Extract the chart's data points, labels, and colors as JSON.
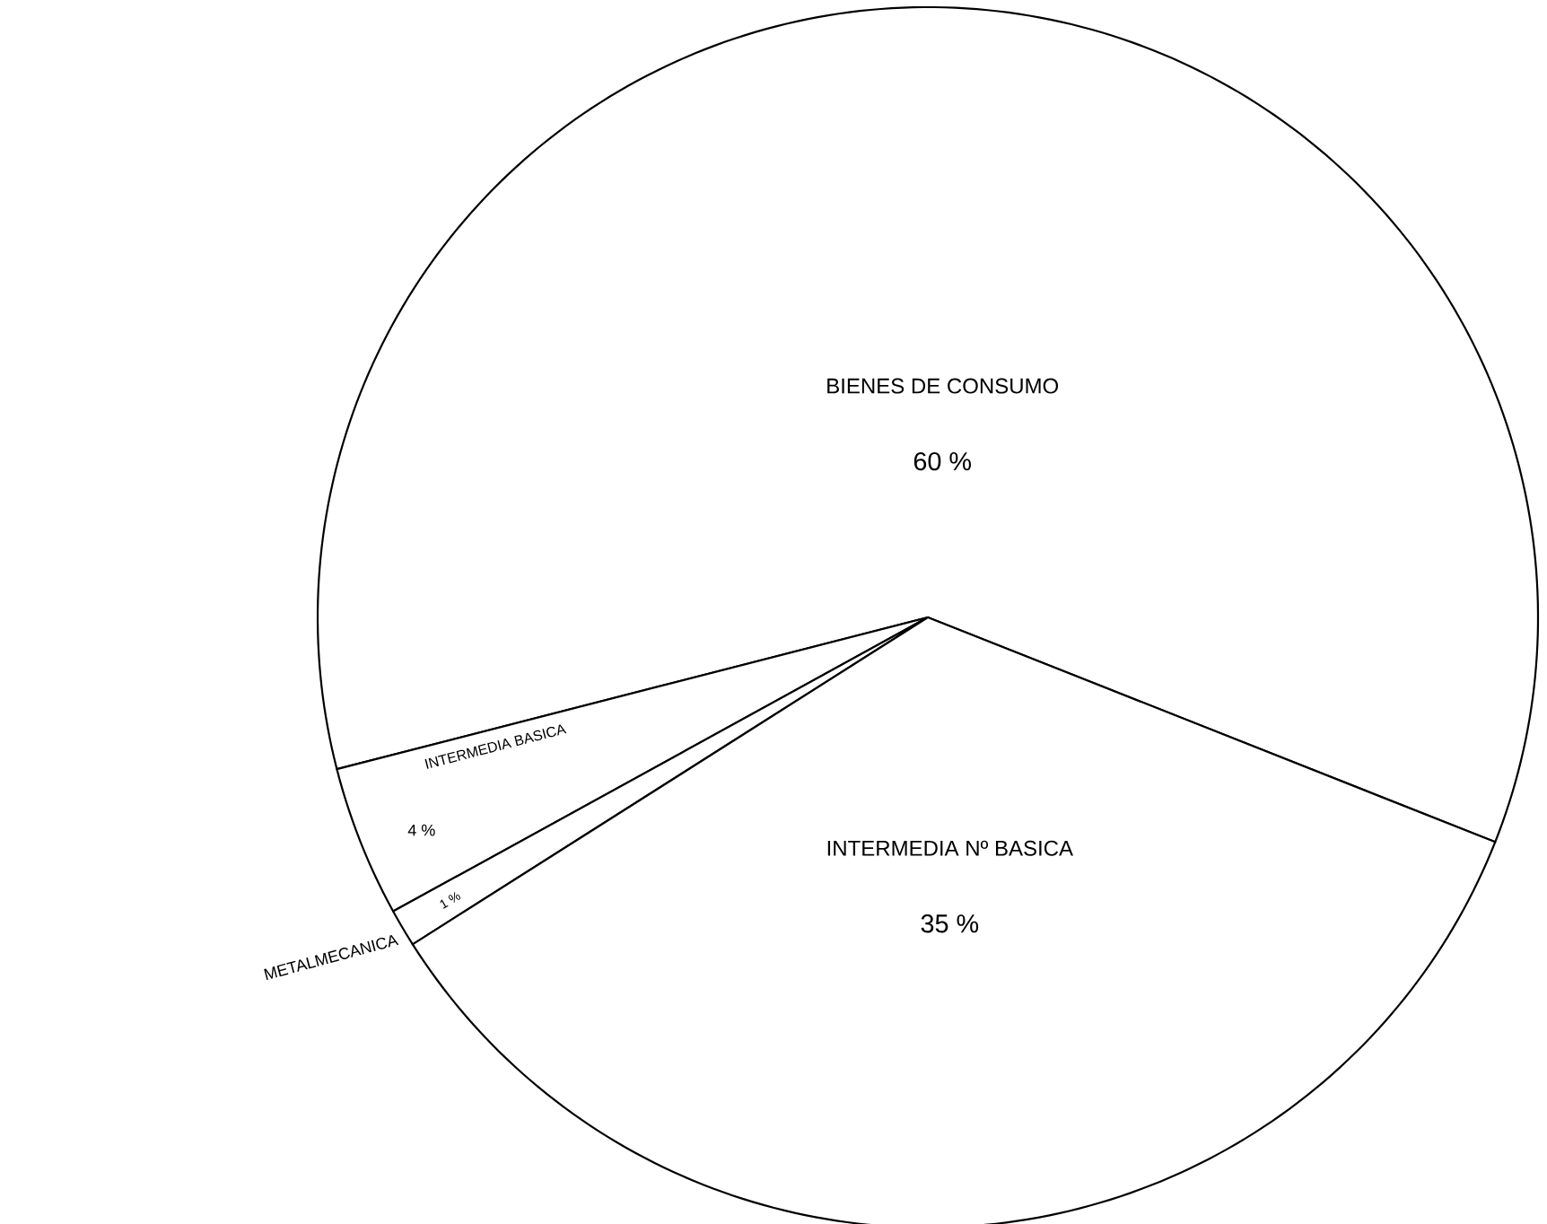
{
  "chart_data": {
    "type": "pie",
    "categories": [
      "BIENES DE CONSUMO",
      "INTERMEDIA BASICA",
      "METALMECANICA",
      "INTERMEDIA Nº BASICA"
    ],
    "values": [
      60,
      4,
      1,
      35
    ],
    "value_labels": [
      "60 %",
      "4 %",
      "1 %",
      "35 %"
    ],
    "colors": [
      "#ffffff",
      "#ffffff",
      "#ffffff",
      "#ffffff"
    ]
  }
}
